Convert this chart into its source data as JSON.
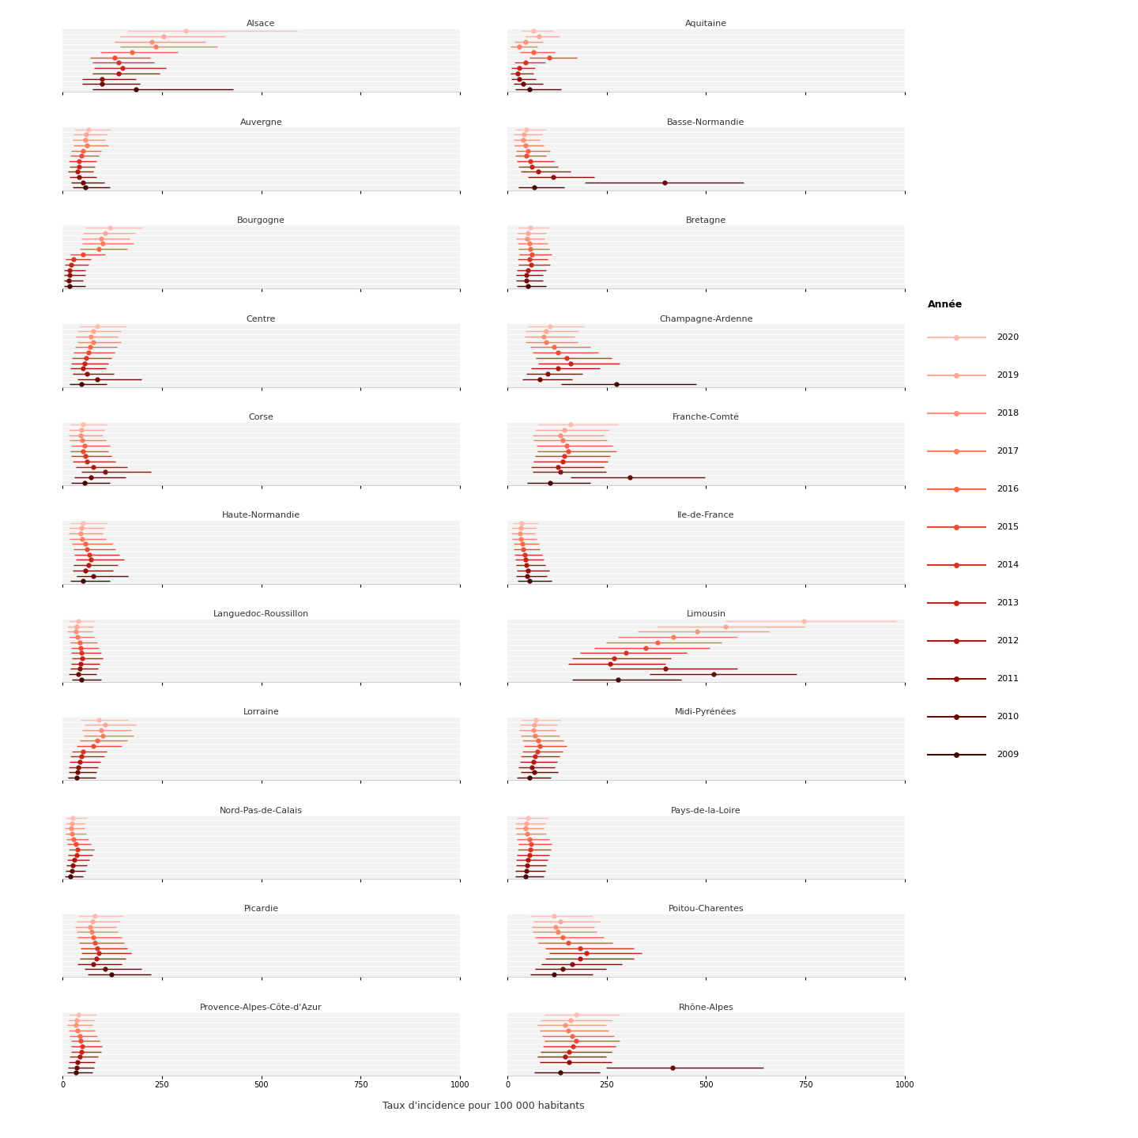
{
  "years": [
    "2020",
    "2019",
    "2018",
    "2017",
    "2016",
    "2015",
    "2014",
    "2013",
    "2012",
    "2011",
    "2010",
    "2009"
  ],
  "year_colors": {
    "2020": "#FFBCB0",
    "2019": "#FFA896",
    "2018": "#FF9278",
    "2017": "#FF7D5C",
    "2016": "#FF6445",
    "2015": "#EE4B35",
    "2014": "#D93525",
    "2013": "#C42515",
    "2012": "#AE1810",
    "2011": "#8C100A",
    "2010": "#6A0A06",
    "2009": "#450600"
  },
  "regions": [
    "Alsace",
    "Aquitaine",
    "Auvergne",
    "Basse-Normandie",
    "Bourgogne",
    "Bretagne",
    "Centre",
    "Champagne-Ardenne",
    "Corse",
    "Franche-Comté",
    "Haute-Normandie",
    "Ile-de-France",
    "Languedoc-Roussillon",
    "Limousin",
    "Lorraine",
    "Midi-Pyrénées",
    "Nord-Pas-de-Calais",
    "Pays-de-la-Loire",
    "Picardie",
    "Poitou-Charentes",
    "Provence-Alpes-Côte-d'Azur",
    "Rhône-Alpes"
  ],
  "data": {
    "Alsace": {
      "2020": [
        310,
        165,
        590
      ],
      "2019": [
        255,
        145,
        410
      ],
      "2018": [
        225,
        130,
        360
      ],
      "2017": [
        235,
        145,
        390
      ],
      "2016": [
        175,
        95,
        290
      ],
      "2015": [
        130,
        70,
        220
      ],
      "2014": [
        140,
        75,
        230
      ],
      "2013": [
        150,
        80,
        260
      ],
      "2012": [
        140,
        75,
        245
      ],
      "2011": [
        100,
        50,
        185
      ],
      "2010": [
        100,
        50,
        195
      ],
      "2009": [
        185,
        75,
        430
      ]
    },
    "Aquitaine": {
      "2020": [
        65,
        35,
        115
      ],
      "2019": [
        80,
        45,
        130
      ],
      "2018": [
        45,
        18,
        90
      ],
      "2017": [
        30,
        8,
        75
      ],
      "2016": [
        65,
        32,
        120
      ],
      "2015": [
        105,
        55,
        175
      ],
      "2014": [
        45,
        18,
        95
      ],
      "2013": [
        30,
        10,
        70
      ],
      "2012": [
        25,
        8,
        65
      ],
      "2011": [
        30,
        10,
        72
      ],
      "2010": [
        40,
        15,
        90
      ],
      "2009": [
        55,
        20,
        135
      ]
    },
    "Auvergne": {
      "2020": [
        65,
        30,
        120
      ],
      "2019": [
        60,
        28,
        112
      ],
      "2018": [
        58,
        25,
        108
      ],
      "2017": [
        62,
        28,
        115
      ],
      "2016": [
        52,
        22,
        98
      ],
      "2015": [
        48,
        20,
        92
      ],
      "2014": [
        42,
        16,
        85
      ],
      "2013": [
        42,
        17,
        82
      ],
      "2012": [
        38,
        14,
        78
      ],
      "2011": [
        42,
        17,
        85
      ],
      "2010": [
        52,
        22,
        105
      ],
      "2009": [
        58,
        25,
        118
      ]
    },
    "Basse-Normandie": {
      "2020": [
        48,
        19,
        98
      ],
      "2019": [
        42,
        16,
        88
      ],
      "2018": [
        40,
        15,
        82
      ],
      "2017": [
        45,
        18,
        92
      ],
      "2016": [
        52,
        21,
        108
      ],
      "2015": [
        48,
        19,
        98
      ],
      "2014": [
        58,
        24,
        118
      ],
      "2013": [
        62,
        27,
        128
      ],
      "2012": [
        78,
        33,
        158
      ],
      "2011": [
        115,
        52,
        218
      ],
      "2010": [
        395,
        195,
        595
      ],
      "2009": [
        68,
        28,
        142
      ]
    },
    "Bourgogne": {
      "2020": [
        118,
        58,
        198
      ],
      "2019": [
        108,
        52,
        182
      ],
      "2018": [
        98,
        48,
        168
      ],
      "2017": [
        102,
        50,
        178
      ],
      "2016": [
        92,
        43,
        162
      ],
      "2015": [
        52,
        20,
        108
      ],
      "2014": [
        28,
        8,
        72
      ],
      "2013": [
        22,
        6,
        65
      ],
      "2012": [
        18,
        4,
        58
      ],
      "2011": [
        18,
        4,
        58
      ],
      "2010": [
        15,
        3,
        52
      ],
      "2009": [
        18,
        4,
        58
      ]
    },
    "Bretagne": {
      "2020": [
        58,
        27,
        106
      ],
      "2019": [
        52,
        24,
        98
      ],
      "2018": [
        50,
        22,
        94
      ],
      "2017": [
        55,
        25,
        102
      ],
      "2016": [
        58,
        27,
        106
      ],
      "2015": [
        62,
        29,
        112
      ],
      "2014": [
        55,
        25,
        102
      ],
      "2013": [
        60,
        27,
        108
      ],
      "2012": [
        52,
        23,
        98
      ],
      "2011": [
        48,
        21,
        90
      ],
      "2010": [
        48,
        21,
        90
      ],
      "2009": [
        52,
        23,
        98
      ]
    },
    "Centre": {
      "2020": [
        88,
        43,
        158
      ],
      "2019": [
        78,
        37,
        146
      ],
      "2018": [
        72,
        33,
        138
      ],
      "2017": [
        78,
        37,
        146
      ],
      "2016": [
        70,
        31,
        136
      ],
      "2015": [
        65,
        28,
        130
      ],
      "2014": [
        60,
        24,
        122
      ],
      "2013": [
        55,
        22,
        115
      ],
      "2012": [
        52,
        20,
        110
      ],
      "2011": [
        62,
        26,
        128
      ],
      "2010": [
        88,
        38,
        198
      ],
      "2009": [
        48,
        18,
        112
      ]
    },
    "Champagne-Ardenne": {
      "2020": [
        108,
        52,
        192
      ],
      "2019": [
        98,
        46,
        178
      ],
      "2018": [
        92,
        43,
        168
      ],
      "2017": [
        98,
        46,
        176
      ],
      "2016": [
        118,
        58,
        208
      ],
      "2015": [
        128,
        63,
        228
      ],
      "2014": [
        148,
        72,
        262
      ],
      "2013": [
        158,
        78,
        282
      ],
      "2012": [
        128,
        60,
        232
      ],
      "2011": [
        102,
        48,
        188
      ],
      "2010": [
        82,
        38,
        162
      ],
      "2009": [
        275,
        135,
        475
      ]
    },
    "Corse": {
      "2020": [
        52,
        20,
        112
      ],
      "2019": [
        48,
        18,
        105
      ],
      "2018": [
        45,
        16,
        102
      ],
      "2017": [
        50,
        18,
        110
      ],
      "2016": [
        55,
        21,
        118
      ],
      "2015": [
        52,
        20,
        115
      ],
      "2014": [
        58,
        22,
        122
      ],
      "2013": [
        62,
        25,
        132
      ],
      "2012": [
        78,
        33,
        162
      ],
      "2011": [
        108,
        48,
        222
      ],
      "2010": [
        72,
        30,
        158
      ],
      "2009": [
        55,
        21,
        119
      ]
    },
    "Franche-Comté": {
      "2020": [
        158,
        78,
        278
      ],
      "2019": [
        142,
        70,
        255
      ],
      "2018": [
        132,
        64,
        242
      ],
      "2017": [
        138,
        66,
        250
      ],
      "2016": [
        148,
        73,
        265
      ],
      "2015": [
        152,
        76,
        275
      ],
      "2014": [
        142,
        70,
        259
      ],
      "2013": [
        138,
        66,
        252
      ],
      "2012": [
        128,
        60,
        242
      ],
      "2011": [
        132,
        63,
        249
      ],
      "2010": [
        308,
        158,
        498
      ],
      "2009": [
        108,
        50,
        208
      ]
    },
    "Haute-Normandie": {
      "2020": [
        52,
        20,
        112
      ],
      "2019": [
        48,
        18,
        105
      ],
      "2018": [
        45,
        16,
        102
      ],
      "2017": [
        50,
        18,
        110
      ],
      "2016": [
        58,
        23,
        124
      ],
      "2015": [
        62,
        27,
        132
      ],
      "2014": [
        68,
        30,
        142
      ],
      "2013": [
        72,
        33,
        155
      ],
      "2012": [
        65,
        28,
        139
      ],
      "2011": [
        58,
        25,
        126
      ],
      "2010": [
        78,
        36,
        165
      ],
      "2009": [
        52,
        20,
        118
      ]
    },
    "Ile-de-France": {
      "2020": [
        36,
        13,
        78
      ],
      "2019": [
        33,
        11,
        72
      ],
      "2018": [
        31,
        10,
        69
      ],
      "2017": [
        34,
        12,
        73
      ],
      "2016": [
        38,
        15,
        79
      ],
      "2015": [
        40,
        16,
        82
      ],
      "2014": [
        43,
        18,
        88
      ],
      "2013": [
        46,
        19,
        92
      ],
      "2012": [
        48,
        21,
        96
      ],
      "2011": [
        52,
        23,
        105
      ],
      "2010": [
        50,
        22,
        100
      ],
      "2009": [
        56,
        25,
        112
      ]
    },
    "Languedoc-Roussillon": {
      "2020": [
        40,
        16,
        82
      ],
      "2019": [
        36,
        14,
        77
      ],
      "2018": [
        34,
        12,
        75
      ],
      "2017": [
        38,
        15,
        79
      ],
      "2016": [
        43,
        19,
        88
      ],
      "2015": [
        46,
        21,
        92
      ],
      "2014": [
        48,
        22,
        97
      ],
      "2013": [
        50,
        24,
        101
      ],
      "2012": [
        46,
        21,
        94
      ],
      "2011": [
        43,
        19,
        90
      ],
      "2010": [
        40,
        16,
        86
      ],
      "2009": [
        48,
        23,
        98
      ]
    },
    "Limousin": {
      "2020": [
        745,
        548,
        978
      ],
      "2019": [
        548,
        378,
        748
      ],
      "2018": [
        478,
        328,
        658
      ],
      "2017": [
        418,
        278,
        578
      ],
      "2016": [
        378,
        248,
        538
      ],
      "2015": [
        348,
        218,
        508
      ],
      "2014": [
        298,
        183,
        452
      ],
      "2013": [
        268,
        162,
        412
      ],
      "2012": [
        258,
        152,
        398
      ],
      "2011": [
        398,
        258,
        578
      ],
      "2010": [
        518,
        358,
        728
      ],
      "2009": [
        278,
        162,
        438
      ]
    },
    "Lorraine": {
      "2020": [
        92,
        46,
        165
      ],
      "2019": [
        108,
        56,
        185
      ],
      "2018": [
        98,
        50,
        172
      ],
      "2017": [
        102,
        53,
        179
      ],
      "2016": [
        88,
        43,
        162
      ],
      "2015": [
        78,
        36,
        148
      ],
      "2014": [
        52,
        23,
        112
      ],
      "2013": [
        48,
        20,
        105
      ],
      "2012": [
        43,
        18,
        96
      ],
      "2011": [
        40,
        16,
        90
      ],
      "2010": [
        38,
        15,
        86
      ],
      "2009": [
        36,
        14,
        83
      ]
    },
    "Midi-Pyrénées": {
      "2020": [
        72,
        36,
        132
      ],
      "2019": [
        68,
        32,
        125
      ],
      "2018": [
        65,
        30,
        122
      ],
      "2017": [
        70,
        34,
        130
      ],
      "2016": [
        78,
        38,
        140
      ],
      "2015": [
        82,
        42,
        148
      ],
      "2014": [
        75,
        38,
        139
      ],
      "2013": [
        70,
        34,
        130
      ],
      "2012": [
        65,
        31,
        125
      ],
      "2011": [
        62,
        28,
        119
      ],
      "2010": [
        68,
        33,
        128
      ],
      "2009": [
        55,
        24,
        109
      ]
    },
    "Nord-Pas-de-Calais": {
      "2020": [
        26,
        9,
        62
      ],
      "2019": [
        23,
        7,
        58
      ],
      "2018": [
        22,
        6,
        55
      ],
      "2017": [
        24,
        8,
        60
      ],
      "2016": [
        28,
        10,
        65
      ],
      "2015": [
        33,
        12,
        72
      ],
      "2014": [
        38,
        15,
        79
      ],
      "2013": [
        36,
        14,
        76
      ],
      "2012": [
        30,
        11,
        67
      ],
      "2011": [
        26,
        9,
        62
      ],
      "2010": [
        23,
        7,
        58
      ],
      "2009": [
        20,
        6,
        52
      ]
    },
    "Pays-de-la-Loire": {
      "2020": [
        52,
        23,
        102
      ],
      "2019": [
        48,
        20,
        96
      ],
      "2018": [
        46,
        19,
        92
      ],
      "2017": [
        50,
        21,
        98
      ],
      "2016": [
        55,
        24,
        106
      ],
      "2015": [
        60,
        27,
        112
      ],
      "2014": [
        58,
        25,
        110
      ],
      "2013": [
        55,
        24,
        106
      ],
      "2012": [
        52,
        22,
        102
      ],
      "2011": [
        50,
        21,
        98
      ],
      "2010": [
        48,
        20,
        96
      ],
      "2009": [
        46,
        19,
        92
      ]
    },
    "Picardie": {
      "2020": [
        82,
        40,
        152
      ],
      "2019": [
        75,
        36,
        142
      ],
      "2018": [
        70,
        32,
        135
      ],
      "2017": [
        73,
        35,
        139
      ],
      "2016": [
        78,
        38,
        148
      ],
      "2015": [
        82,
        42,
        155
      ],
      "2014": [
        88,
        46,
        162
      ],
      "2013": [
        92,
        48,
        172
      ],
      "2012": [
        85,
        44,
        159
      ],
      "2011": [
        78,
        38,
        148
      ],
      "2010": [
        108,
        56,
        198
      ],
      "2009": [
        122,
        63,
        222
      ]
    },
    "Poitou-Charentes": {
      "2020": [
        118,
        58,
        212
      ],
      "2019": [
        132,
        66,
        232
      ],
      "2018": [
        122,
        61,
        218
      ],
      "2017": [
        128,
        63,
        225
      ],
      "2016": [
        138,
        70,
        242
      ],
      "2015": [
        152,
        78,
        265
      ],
      "2014": [
        182,
        96,
        318
      ],
      "2013": [
        198,
        106,
        338
      ],
      "2012": [
        182,
        96,
        318
      ],
      "2011": [
        162,
        86,
        288
      ],
      "2010": [
        138,
        70,
        248
      ],
      "2009": [
        118,
        58,
        215
      ]
    },
    "Provence-Alpes-Côte-d'Azur": {
      "2020": [
        40,
        16,
        85
      ],
      "2019": [
        36,
        14,
        79
      ],
      "2018": [
        34,
        12,
        75
      ],
      "2017": [
        38,
        15,
        81
      ],
      "2016": [
        43,
        18,
        88
      ],
      "2015": [
        46,
        21,
        93
      ],
      "2014": [
        50,
        22,
        99
      ],
      "2013": [
        48,
        21,
        97
      ],
      "2012": [
        43,
        18,
        90
      ],
      "2011": [
        38,
        16,
        82
      ],
      "2010": [
        36,
        14,
        79
      ],
      "2009": [
        33,
        12,
        75
      ]
    },
    "Rhône-Alpes": {
      "2020": [
        172,
        93,
        282
      ],
      "2019": [
        158,
        84,
        262
      ],
      "2018": [
        145,
        76,
        248
      ],
      "2017": [
        152,
        81,
        255
      ],
      "2016": [
        162,
        88,
        269
      ],
      "2015": [
        172,
        94,
        282
      ],
      "2014": [
        165,
        89,
        272
      ],
      "2013": [
        155,
        83,
        262
      ],
      "2012": [
        145,
        76,
        248
      ],
      "2011": [
        155,
        82,
        262
      ],
      "2010": [
        415,
        248,
        645
      ],
      "2009": [
        132,
        68,
        232
      ]
    }
  },
  "xlim": [
    0,
    1000
  ],
  "xlabel": "Taux d'incidence pour 100 000 habitants",
  "legend_title": "Année",
  "background_color": "#FFFFFF",
  "panel_background": "#F2F2F2",
  "grid_color": "#FFFFFF"
}
